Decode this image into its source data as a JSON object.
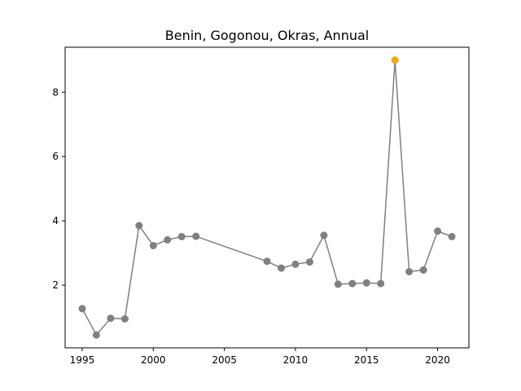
{
  "chart_data": {
    "type": "line",
    "title": "Benin, Gogonou, Okras, Annual",
    "xlabel": "",
    "ylabel": "",
    "xlim": [
      1993.8,
      2022.2
    ],
    "ylim": [
      0.05,
      9.4
    ],
    "xticks": [
      1995,
      2000,
      2005,
      2010,
      2015,
      2020
    ],
    "yticks": [
      2,
      4,
      6,
      8
    ],
    "grid": false,
    "line_color": "#808080",
    "highlight_color": "#FFA500",
    "series": [
      {
        "x": [
          1995,
          1996,
          1997,
          1998,
          1999,
          2000,
          2001,
          2002,
          2003,
          2008,
          2009,
          2010,
          2011,
          2012,
          2013,
          2014,
          2015,
          2016,
          2017,
          2018,
          2019,
          2020,
          2021
        ],
        "y": [
          1.27,
          0.45,
          0.97,
          0.95,
          3.85,
          3.23,
          3.41,
          3.51,
          3.52,
          2.74,
          2.53,
          2.65,
          2.72,
          3.55,
          2.03,
          2.05,
          2.07,
          2.05,
          9.0,
          2.42,
          2.47,
          3.68,
          3.51
        ],
        "highlight_x": [
          2017
        ]
      }
    ]
  }
}
